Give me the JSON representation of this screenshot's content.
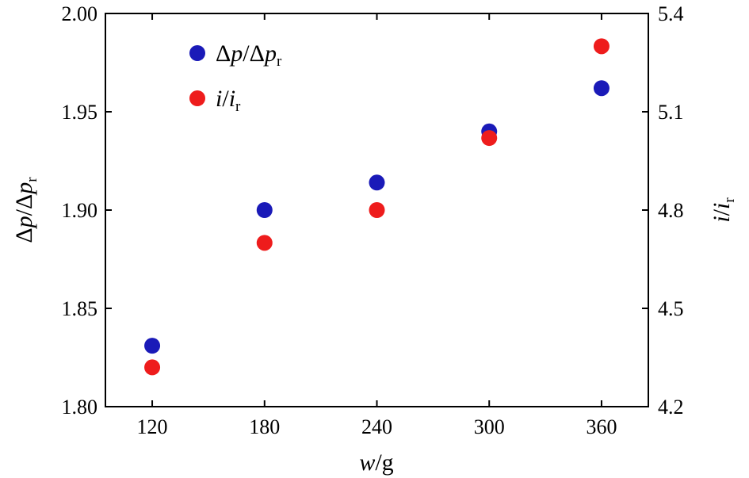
{
  "chart_data": {
    "type": "scatter",
    "x_axis": {
      "label_italic": "w",
      "label_rest": "/g",
      "ticks": [
        120,
        180,
        240,
        300,
        360
      ],
      "range": [
        95,
        385
      ]
    },
    "y_left": {
      "label": "Δp/Δp_r",
      "ticks": [
        "1.80",
        "1.85",
        "1.90",
        "1.95",
        "2.00"
      ],
      "range": [
        1.8,
        2.0
      ]
    },
    "y_right": {
      "label": "i/i_r",
      "ticks": [
        "4.2",
        "4.5",
        "4.8",
        "5.1",
        "5.4"
      ],
      "range": [
        4.2,
        5.4
      ]
    },
    "series": [
      {
        "name": "Δp/Δp_r",
        "axis": "left",
        "color": "#1a1ab8",
        "x": [
          120,
          180,
          240,
          300,
          360
        ],
        "y": [
          1.831,
          1.9,
          1.914,
          1.94,
          1.962
        ]
      },
      {
        "name": "i/i_r",
        "axis": "right",
        "color": "#ee1c1c",
        "x": [
          120,
          180,
          240,
          300,
          360
        ],
        "y": [
          4.32,
          4.7,
          4.8,
          5.02,
          5.3
        ]
      }
    ],
    "legend_position": "top-left",
    "grid": false
  }
}
